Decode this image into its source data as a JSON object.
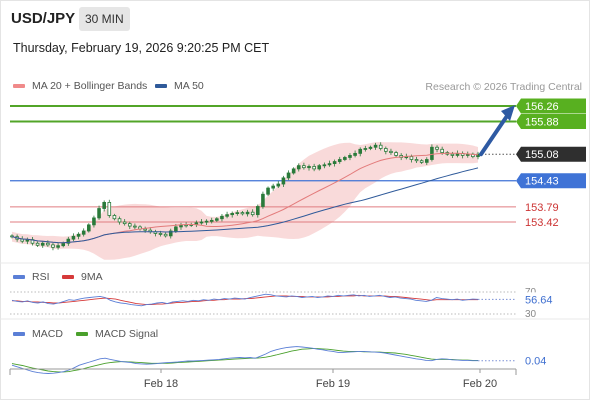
{
  "header": {
    "symbol": "USD/JPY",
    "timeframe": "30 MIN",
    "datetime": "Thursday, February 19, 2026 9:20:25 PM CET",
    "credit": "Research © 2026 Trading Central"
  },
  "colors": {
    "candle": "#2a7a3a",
    "bollinger_band": "#f8d4d4",
    "ma20": "#e37b7b",
    "ma50": "#2f5a9a",
    "support": "#3f73d6",
    "resistance": "#52a528",
    "target_box": "#58b020",
    "key_level_box": "#3f73d6",
    "last_price_box": "#2f2f2f",
    "pivot_red": "#e07c80",
    "arrow": "#2e5aa3",
    "rsi": "#5b7fd6",
    "rsi_ma": "#d63a3a",
    "macd": "#5b7fd6",
    "macd_signal": "#4aa02c"
  },
  "chart_data": [
    {
      "type": "candlestick",
      "title": "USD/JPY 30 MIN",
      "x_ticks": [
        "Feb 18",
        "Feb 19",
        "Feb 20"
      ],
      "legend": [
        {
          "name": "MA 20 + Bollinger Bands",
          "color": "#f08a8a"
        },
        {
          "name": "MA 50",
          "color": "#2f5a9a"
        }
      ],
      "ylim": [
        153.2,
        156.5
      ],
      "close": [
        153.06,
        153.0,
        152.95,
        152.99,
        152.9,
        152.85,
        152.9,
        152.86,
        152.8,
        152.84,
        152.9,
        153.0,
        153.07,
        153.12,
        153.2,
        153.35,
        153.52,
        153.75,
        153.9,
        153.58,
        153.5,
        153.42,
        153.38,
        153.32,
        153.3,
        153.25,
        153.22,
        153.18,
        153.14,
        153.12,
        153.08,
        153.2,
        153.3,
        153.35,
        153.34,
        153.36,
        153.4,
        153.42,
        153.44,
        153.46,
        153.5,
        153.56,
        153.6,
        153.63,
        153.65,
        153.62,
        153.66,
        153.6,
        153.8,
        154.1,
        154.25,
        154.3,
        154.35,
        154.5,
        154.62,
        154.72,
        154.8,
        154.75,
        154.78,
        154.72,
        154.8,
        154.82,
        154.85,
        154.9,
        154.95,
        155.0,
        155.05,
        155.1,
        155.2,
        155.22,
        155.25,
        155.3,
        155.22,
        155.15,
        155.12,
        155.05,
        155.0,
        155.02,
        154.95,
        154.92,
        154.88,
        154.95,
        155.25,
        155.2,
        155.12,
        155.08,
        155.05,
        155.1,
        155.05,
        155.08,
        155.02,
        155.08
      ],
      "bollinger": {
        "upper": 155.36,
        "lower": 154.85,
        "note": "MA 20 with Bollinger Bands"
      },
      "ma50_last": 154.95,
      "levels": [
        {
          "value": "156.26",
          "kind": "target",
          "line": "green"
        },
        {
          "value": "155.88",
          "kind": "resistance",
          "line": "green"
        },
        {
          "value": "155.08",
          "kind": "last-price",
          "line": "dotted"
        },
        {
          "value": "154.43",
          "kind": "pivot",
          "line": "blue"
        },
        {
          "value": "153.79",
          "kind": "support",
          "line": "red"
        },
        {
          "value": "153.42",
          "kind": "support",
          "line": "red"
        }
      ],
      "arrow": {
        "direction": "up",
        "from": 155.08,
        "to": 156.26
      }
    },
    {
      "type": "line",
      "title": "RSI",
      "legend": [
        {
          "name": "RSI",
          "color": "#5b7fd6"
        },
        {
          "name": "9MA",
          "color": "#d63a3a"
        }
      ],
      "ylim": [
        30,
        70
      ],
      "y_ticks": [
        "70",
        "30"
      ],
      "last_value": "56.64",
      "rsi": [
        55,
        53,
        52,
        54,
        51,
        50,
        52,
        49,
        48,
        50,
        53,
        56,
        55,
        57,
        59,
        60,
        61,
        62,
        60,
        55,
        52,
        50,
        49,
        47,
        46,
        45,
        47,
        48,
        50,
        51,
        49,
        52,
        53,
        54,
        53,
        55,
        54,
        56,
        55,
        57,
        56,
        58,
        57,
        59,
        58,
        57,
        60,
        62,
        64,
        66,
        65,
        63,
        62,
        61,
        63,
        62,
        60,
        61,
        62,
        60,
        61,
        63,
        62,
        64,
        63,
        64,
        65,
        63,
        64,
        62,
        63,
        64,
        62,
        60,
        61,
        59,
        58,
        57,
        55,
        54,
        53,
        55,
        60,
        58,
        57,
        56,
        57,
        55,
        56,
        57,
        56.64
      ],
      "rsi_ma": [
        54,
        54,
        53,
        53,
        52,
        52,
        51,
        51,
        50,
        50,
        51,
        52,
        53,
        54,
        55,
        56,
        57,
        58,
        59,
        58,
        57,
        55,
        53,
        51,
        49,
        48,
        47,
        47,
        48,
        48,
        49,
        50,
        51,
        51,
        52,
        53,
        53,
        54,
        55,
        55,
        56,
        56,
        57,
        57,
        57,
        58,
        58,
        59,
        60,
        61,
        62,
        63,
        63,
        63,
        62,
        62,
        62,
        61,
        61,
        61,
        61,
        61,
        62,
        62,
        63,
        63,
        63,
        64,
        63,
        63,
        63,
        63,
        63,
        62,
        62,
        61,
        60,
        59,
        58,
        57,
        56,
        55,
        56,
        56,
        56,
        56,
        56,
        56,
        56,
        56,
        56
      ]
    },
    {
      "type": "line",
      "title": "MACD",
      "legend": [
        {
          "name": "MACD",
          "color": "#5b7fd6"
        },
        {
          "name": "MACD Signal",
          "color": "#4aa02c"
        }
      ],
      "ylim": [
        -0.45,
        0.55
      ],
      "last_value": "0.04",
      "macd": [
        -0.1,
        -0.15,
        -0.2,
        -0.25,
        -0.3,
        -0.33,
        -0.35,
        -0.36,
        -0.35,
        -0.33,
        -0.3,
        -0.25,
        -0.18,
        -0.1,
        -0.05,
        0.0,
        0.05,
        0.1,
        0.12,
        0.08,
        0.05,
        0.02,
        0.0,
        -0.02,
        -0.05,
        -0.06,
        -0.07,
        -0.06,
        -0.05,
        -0.03,
        -0.02,
        -0.01,
        0.0,
        0.02,
        0.03,
        0.03,
        0.04,
        0.05,
        0.06,
        0.07,
        0.08,
        0.1,
        0.12,
        0.13,
        0.14,
        0.13,
        0.14,
        0.12,
        0.18,
        0.25,
        0.33,
        0.38,
        0.42,
        0.45,
        0.47,
        0.48,
        0.47,
        0.45,
        0.43,
        0.4,
        0.38,
        0.35,
        0.33,
        0.3,
        0.3,
        0.31,
        0.32,
        0.33,
        0.33,
        0.32,
        0.31,
        0.3,
        0.28,
        0.25,
        0.22,
        0.19,
        0.16,
        0.13,
        0.1,
        0.08,
        0.05,
        0.04,
        0.08,
        0.1,
        0.09,
        0.07,
        0.06,
        0.05,
        0.05,
        0.04,
        0.04
      ],
      "signal": [
        -0.05,
        -0.08,
        -0.11,
        -0.15,
        -0.19,
        -0.22,
        -0.25,
        -0.28,
        -0.3,
        -0.31,
        -0.31,
        -0.3,
        -0.27,
        -0.24,
        -0.2,
        -0.16,
        -0.12,
        -0.08,
        -0.04,
        -0.02,
        0.0,
        0.01,
        0.01,
        0.0,
        -0.01,
        -0.02,
        -0.03,
        -0.04,
        -0.04,
        -0.04,
        -0.04,
        -0.03,
        -0.02,
        -0.01,
        0.0,
        0.01,
        0.02,
        0.03,
        0.04,
        0.05,
        0.06,
        0.07,
        0.08,
        0.09,
        0.1,
        0.11,
        0.12,
        0.12,
        0.13,
        0.15,
        0.18,
        0.22,
        0.26,
        0.3,
        0.34,
        0.37,
        0.4,
        0.41,
        0.42,
        0.42,
        0.41,
        0.4,
        0.38,
        0.36,
        0.34,
        0.33,
        0.33,
        0.33,
        0.32,
        0.32,
        0.31,
        0.31,
        0.3,
        0.29,
        0.28,
        0.26,
        0.24,
        0.21,
        0.18,
        0.15,
        0.12,
        0.09,
        0.08,
        0.08,
        0.08,
        0.08,
        0.07,
        0.06,
        0.06,
        0.05,
        0.05
      ]
    }
  ]
}
